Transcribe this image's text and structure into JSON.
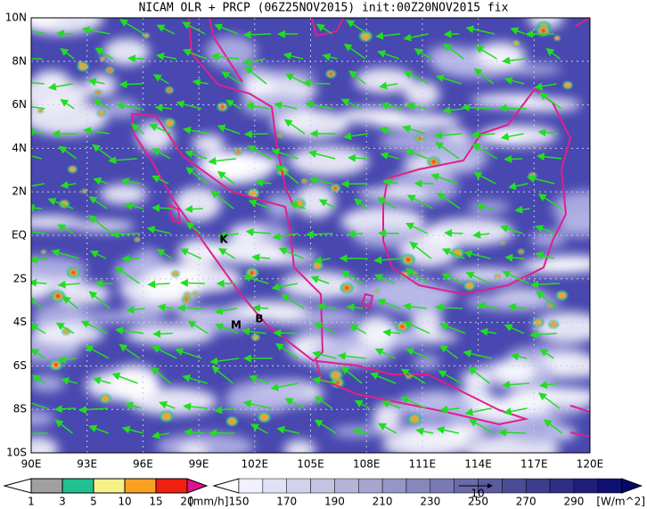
{
  "title": "NICAM OLR + PRCP (06Z25NOV2015) init:00Z20NOV2015 fix",
  "latitude_labels": [
    "10N",
    "8N",
    "6N",
    "4N",
    "2N",
    "EQ",
    "2S",
    "4S",
    "6S",
    "8S",
    "10S"
  ],
  "longitude_labels": [
    "90E",
    "93E",
    "96E",
    "99E",
    "102E",
    "105E",
    "108E",
    "111E",
    "114E",
    "117E",
    "120E"
  ],
  "annotations": [
    "K",
    "M",
    "B"
  ],
  "precip_colorbar": {
    "labels": [
      1,
      3,
      5,
      10,
      15,
      20
    ],
    "unit": "[mm/h]"
  },
  "olr_colorbar": {
    "labels": [
      150,
      170,
      190,
      210,
      230,
      250,
      270,
      290
    ],
    "unit": "[W/m^2]"
  },
  "vector_reference": "10"
}
